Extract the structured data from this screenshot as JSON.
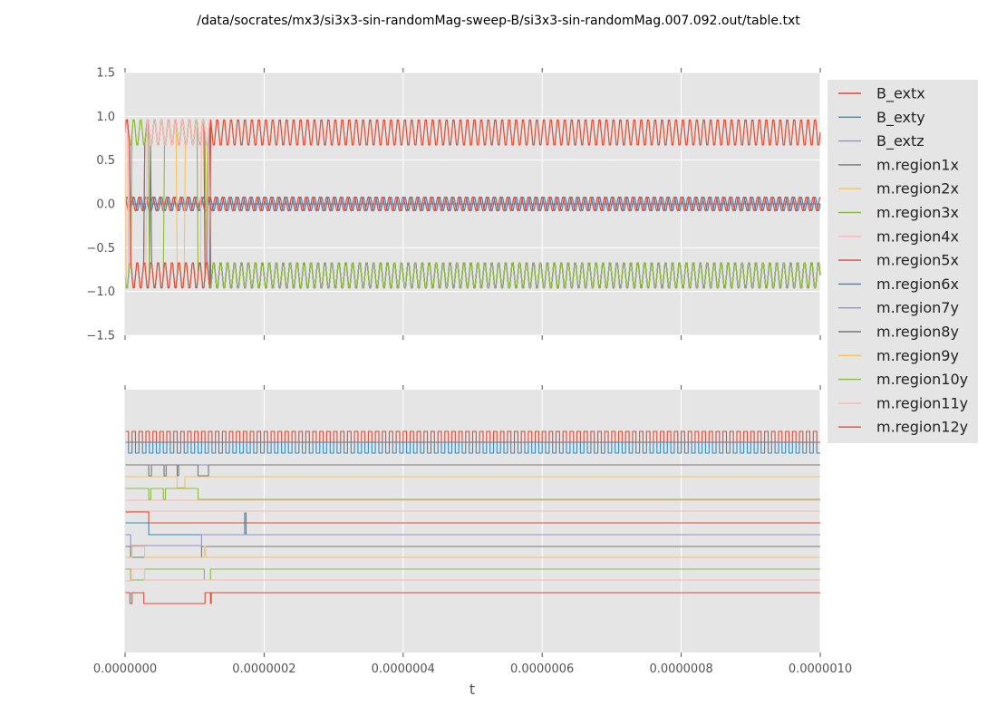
{
  "chart_data": {
    "type": "line",
    "title": "/data/socrates/mx3/si3x3-sin-randomMag-sweep-B/si3x3-sin-randomMag.007.092.out/table.txt",
    "xlabel": "t",
    "xlim": [
      0,
      1e-06
    ],
    "x_ticks": [
      "0.0000000",
      "0.0000002",
      "0.0000004",
      "0.0000006",
      "0.0000008",
      "0.0000010"
    ],
    "grid": true,
    "legend_position": "right",
    "panels": [
      {
        "name": "top",
        "ylim": [
          -1.5,
          1.5
        ],
        "y_ticks": [
          "1.5",
          "1.0",
          "0.5",
          "0.0",
          "−0.5",
          "−1.0",
          "−1.5"
        ],
        "y_tick_values": [
          1.5,
          1.0,
          0.5,
          0.0,
          -0.5,
          -1.0,
          -1.5
        ]
      },
      {
        "name": "bottom",
        "y_ticks_shown": false
      }
    ],
    "series": [
      {
        "name": "B_extx",
        "color": "#e24a33"
      },
      {
        "name": "B_exty",
        "color": "#348abd"
      },
      {
        "name": "B_extz",
        "color": "#988ed5"
      },
      {
        "name": "m.region1x",
        "color": "#777777"
      },
      {
        "name": "m.region2x",
        "color": "#fbc15e"
      },
      {
        "name": "m.region3x",
        "color": "#8eba42"
      },
      {
        "name": "m.region4x",
        "color": "#ffb5b8"
      },
      {
        "name": "m.region5x",
        "color": "#e24a33"
      },
      {
        "name": "m.region6x",
        "color": "#348abd"
      },
      {
        "name": "m.region7y",
        "color": "#988ed5"
      },
      {
        "name": "m.region8y",
        "color": "#777777"
      },
      {
        "name": "m.region9y",
        "color": "#fbc15e"
      },
      {
        "name": "m.region10y",
        "color": "#8eba42"
      },
      {
        "name": "m.region11y",
        "color": "#ffb5b8"
      },
      {
        "name": "m.region12y",
        "color": "#e24a33"
      }
    ],
    "oscillation_cycles": 100
  }
}
